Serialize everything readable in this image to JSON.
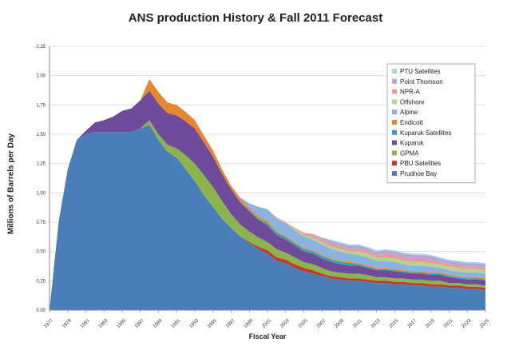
{
  "chart_data": {
    "type": "area",
    "stacked": true,
    "title": "ANS production History & Fall 2011 Forecast",
    "xlabel": "Fiscal Year",
    "ylabel": "Millions of Barrels per Day",
    "ylim": [
      0,
      2.25
    ],
    "y_ticks": [
      "0.00",
      "0.25",
      "0.50",
      "0.75",
      "1.00",
      "1.25",
      "1.50",
      "1.75",
      "2.00",
      "2.25"
    ],
    "x": [
      1977,
      1978,
      1979,
      1980,
      1981,
      1982,
      1983,
      1984,
      1985,
      1986,
      1987,
      1988,
      1989,
      1990,
      1991,
      1992,
      1993,
      1994,
      1995,
      1996,
      1997,
      1998,
      1999,
      2000,
      2001,
      2002,
      2003,
      2004,
      2005,
      2006,
      2007,
      2008,
      2009,
      2010,
      2011,
      2012,
      2013,
      2014,
      2015,
      2016,
      2017,
      2018,
      2019,
      2020,
      2021,
      2022,
      2023,
      2024,
      2025
    ],
    "x_tick_labels": [
      "1977",
      "1979",
      "1981",
      "1983",
      "1985",
      "1987",
      "1989",
      "1991",
      "1993",
      "1995",
      "1997",
      "1999",
      "2001",
      "2003",
      "2005",
      "2007",
      "2009",
      "2011",
      "2013",
      "2015",
      "2017",
      "2019",
      "2021",
      "2023",
      "2025"
    ],
    "legend_position": "right",
    "series": [
      {
        "name": "Prudhoe Bay",
        "color": "#4a7ebb",
        "values": [
          0.0,
          0.75,
          1.2,
          1.45,
          1.5,
          1.52,
          1.52,
          1.52,
          1.52,
          1.52,
          1.55,
          1.58,
          1.45,
          1.35,
          1.3,
          1.2,
          1.1,
          0.98,
          0.88,
          0.78,
          0.7,
          0.63,
          0.57,
          0.52,
          0.48,
          0.42,
          0.4,
          0.36,
          0.33,
          0.31,
          0.29,
          0.27,
          0.26,
          0.25,
          0.25,
          0.24,
          0.23,
          0.23,
          0.22,
          0.22,
          0.21,
          0.21,
          0.2,
          0.2,
          0.19,
          0.19,
          0.18,
          0.18,
          0.17
        ]
      },
      {
        "name": "PBU Satellites",
        "color": "#c0392b",
        "values": [
          0,
          0,
          0,
          0,
          0,
          0,
          0,
          0,
          0,
          0,
          0,
          0,
          0,
          0,
          0,
          0,
          0,
          0,
          0,
          0,
          0,
          0,
          0.01,
          0.02,
          0.03,
          0.03,
          0.03,
          0.03,
          0.03,
          0.03,
          0.02,
          0.02,
          0.02,
          0.02,
          0.02,
          0.02,
          0.02,
          0.02,
          0.02,
          0.02,
          0.02,
          0.02,
          0.02,
          0.02,
          0.02,
          0.02,
          0.02,
          0.02,
          0.02
        ]
      },
      {
        "name": "GPMA",
        "color": "#8db34c",
        "values": [
          0,
          0,
          0,
          0,
          0,
          0,
          0,
          0,
          0,
          0,
          0,
          0.04,
          0.05,
          0.06,
          0.08,
          0.12,
          0.15,
          0.17,
          0.17,
          0.15,
          0.12,
          0.1,
          0.09,
          0.08,
          0.07,
          0.07,
          0.06,
          0.06,
          0.05,
          0.05,
          0.05,
          0.04,
          0.04,
          0.04,
          0.04,
          0.04,
          0.03,
          0.03,
          0.03,
          0.03,
          0.03,
          0.03,
          0.03,
          0.03,
          0.02,
          0.02,
          0.02,
          0.02,
          0.02
        ]
      },
      {
        "name": "Kuparuk",
        "color": "#6e4b9b",
        "values": [
          0,
          0,
          0,
          0,
          0.03,
          0.08,
          0.1,
          0.13,
          0.18,
          0.2,
          0.24,
          0.25,
          0.26,
          0.27,
          0.28,
          0.29,
          0.3,
          0.28,
          0.26,
          0.23,
          0.21,
          0.19,
          0.17,
          0.15,
          0.14,
          0.12,
          0.11,
          0.1,
          0.09,
          0.09,
          0.08,
          0.08,
          0.07,
          0.07,
          0.07,
          0.06,
          0.06,
          0.06,
          0.06,
          0.05,
          0.05,
          0.05,
          0.05,
          0.05,
          0.05,
          0.04,
          0.04,
          0.04,
          0.04
        ]
      },
      {
        "name": "Kuparuk Satellites",
        "color": "#2f9fb3",
        "values": [
          0,
          0,
          0,
          0,
          0,
          0,
          0,
          0,
          0,
          0,
          0,
          0,
          0,
          0,
          0,
          0,
          0,
          0,
          0,
          0,
          0,
          0,
          0.01,
          0.01,
          0.02,
          0.02,
          0.02,
          0.02,
          0.02,
          0.02,
          0.02,
          0.02,
          0.02,
          0.02,
          0.01,
          0.01,
          0.01,
          0.01,
          0.01,
          0.01,
          0.01,
          0.01,
          0.01,
          0.01,
          0.01,
          0.01,
          0.01,
          0.01,
          0.01
        ]
      },
      {
        "name": "Endicott",
        "color": "#e6862d",
        "values": [
          0,
          0,
          0,
          0,
          0,
          0,
          0,
          0,
          0,
          0,
          0,
          0.1,
          0.1,
          0.09,
          0.09,
          0.08,
          0.07,
          0.06,
          0.05,
          0.04,
          0.03,
          0.03,
          0.02,
          0.02,
          0.02,
          0.01,
          0.01,
          0.01,
          0.01,
          0.01,
          0.01,
          0.01,
          0.01,
          0.01,
          0.01,
          0.01,
          0.01,
          0.01,
          0.01,
          0.01,
          0.01,
          0.01,
          0.01,
          0.01,
          0.01,
          0.01,
          0.01,
          0.01,
          0.01
        ]
      },
      {
        "name": "Alpine",
        "color": "#8ab4de",
        "values": [
          0,
          0,
          0,
          0,
          0,
          0,
          0,
          0,
          0,
          0,
          0,
          0,
          0,
          0,
          0,
          0,
          0,
          0,
          0,
          0,
          0,
          0.01,
          0.04,
          0.08,
          0.1,
          0.11,
          0.11,
          0.1,
          0.1,
          0.09,
          0.09,
          0.08,
          0.08,
          0.07,
          0.07,
          0.07,
          0.06,
          0.06,
          0.06,
          0.05,
          0.05,
          0.05,
          0.05,
          0.04,
          0.04,
          0.04,
          0.04,
          0.04,
          0.04
        ]
      },
      {
        "name": "Offshore",
        "color": "#b7d38a",
        "values": [
          0,
          0,
          0,
          0,
          0,
          0,
          0,
          0,
          0,
          0,
          0,
          0,
          0,
          0,
          0,
          0,
          0,
          0,
          0,
          0,
          0,
          0,
          0,
          0,
          0,
          0,
          0,
          0.01,
          0.01,
          0.02,
          0.02,
          0.02,
          0.02,
          0.02,
          0.03,
          0.03,
          0.03,
          0.03,
          0.03,
          0.03,
          0.03,
          0.03,
          0.03,
          0.03,
          0.03,
          0.03,
          0.03,
          0.03,
          0.03
        ]
      },
      {
        "name": "NPR-A",
        "color": "#e99a9a",
        "values": [
          0,
          0,
          0,
          0,
          0,
          0,
          0,
          0,
          0,
          0,
          0,
          0,
          0,
          0,
          0,
          0,
          0,
          0,
          0,
          0,
          0,
          0,
          0,
          0,
          0,
          0.01,
          0.01,
          0.01,
          0.02,
          0.02,
          0.02,
          0.02,
          0.02,
          0.02,
          0.02,
          0.02,
          0.02,
          0.03,
          0.03,
          0.03,
          0.03,
          0.03,
          0.03,
          0.02,
          0.02,
          0.02,
          0.02,
          0.02,
          0.02
        ]
      },
      {
        "name": "Point Thomson",
        "color": "#b7a6d6",
        "values": [
          0,
          0,
          0,
          0,
          0,
          0,
          0,
          0,
          0,
          0,
          0,
          0,
          0,
          0,
          0,
          0,
          0,
          0,
          0,
          0,
          0,
          0,
          0,
          0,
          0,
          0,
          0,
          0,
          0,
          0.01,
          0.02,
          0.03,
          0.03,
          0.03,
          0.03,
          0.03,
          0.03,
          0.03,
          0.03,
          0.03,
          0.03,
          0.03,
          0.03,
          0.03,
          0.03,
          0.03,
          0.03,
          0.03,
          0.03
        ]
      },
      {
        "name": "PTU Satellites",
        "color": "#a6d6e6",
        "values": [
          0,
          0,
          0,
          0,
          0,
          0,
          0,
          0,
          0,
          0,
          0,
          0,
          0,
          0,
          0,
          0,
          0,
          0,
          0,
          0,
          0,
          0,
          0,
          0,
          0,
          0,
          0,
          0,
          0,
          0,
          0,
          0.01,
          0.01,
          0.01,
          0.01,
          0.01,
          0.01,
          0.01,
          0.01,
          0.01,
          0.01,
          0.01,
          0.01,
          0.01,
          0.01,
          0.01,
          0.01,
          0.01,
          0.01
        ]
      }
    ]
  }
}
